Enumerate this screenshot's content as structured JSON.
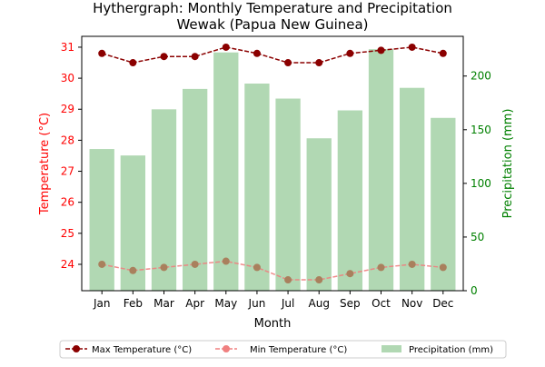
{
  "chart_data": {
    "type": "bar+line",
    "title_line1": "Hythergraph: Monthly Temperature and Precipitation",
    "title_line2": "Wewak (Papua New Guinea)",
    "xlabel": "Month",
    "ylabel_left": "Temperature (°C)",
    "ylabel_right": "Precipitation (mm)",
    "categories": [
      "Jan",
      "Feb",
      "Mar",
      "Apr",
      "May",
      "Jun",
      "Jul",
      "Aug",
      "Sep",
      "Oct",
      "Nov",
      "Dec"
    ],
    "y_left_range": [
      23.15,
      31.35
    ],
    "y_left_ticks": [
      24,
      25,
      26,
      27,
      28,
      29,
      30,
      31
    ],
    "y_right_range": [
      0,
      237
    ],
    "y_right_ticks": [
      0,
      50,
      100,
      150,
      200
    ],
    "grid": false,
    "legend_position": "bottom-center",
    "series": [
      {
        "name": "Max Temperature (°C)",
        "kind": "line",
        "axis": "left",
        "color": "#8b0000",
        "values": [
          30.8,
          30.5,
          30.7,
          30.7,
          31.0,
          30.8,
          30.5,
          30.5,
          30.8,
          30.9,
          31.0,
          30.8
        ]
      },
      {
        "name": "Min Temperature (°C)",
        "kind": "line",
        "axis": "left",
        "color": "#f08080",
        "values": [
          24.0,
          23.8,
          23.9,
          24.0,
          24.1,
          23.9,
          23.5,
          23.5,
          23.7,
          23.9,
          24.0,
          23.9
        ]
      },
      {
        "name": "Precipitation (mm)",
        "kind": "bar",
        "axis": "right",
        "color": "#b1d8b3",
        "values": [
          132,
          126,
          169,
          188,
          222,
          193,
          179,
          142,
          168,
          225,
          189,
          161
        ]
      }
    ],
    "colors": {
      "left_axis": "#ff0000",
      "right_axis": "#008000"
    }
  }
}
